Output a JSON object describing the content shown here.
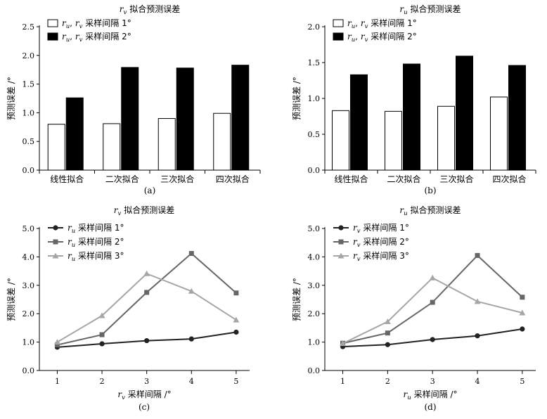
{
  "chart_data": [
    {
      "id": "a",
      "type": "bar",
      "title": "rv 拟合预测误差",
      "title_italic": "r",
      "title_sub": "v",
      "title_rest": " 拟合预测误差",
      "caption": "(a)",
      "ylabel": "预测误差 /°",
      "xlabel": "",
      "ylim": [
        0,
        2.5
      ],
      "yticks": [
        "0.0",
        "0.5",
        "1.0",
        "1.5",
        "2.0",
        "2.5"
      ],
      "categories": [
        "线性拟合",
        "二次拟合",
        "三次拟合",
        "四次拟合"
      ],
      "legend_position": "top-left",
      "series": [
        {
          "name": "ru, rv 采样间隔 1°",
          "legend_rest": " 采样间隔  1°",
          "fill": "#ffffff",
          "values": [
            0.8,
            0.81,
            0.9,
            0.99
          ]
        },
        {
          "name": "ru, rv 采样间隔 2°",
          "legend_rest": " 采样间隔  2°",
          "fill": "#000000",
          "values": [
            1.26,
            1.79,
            1.78,
            1.83
          ]
        }
      ]
    },
    {
      "id": "b",
      "type": "bar",
      "title": "ru 拟合预测误差",
      "title_italic": "r",
      "title_sub": "u",
      "title_rest": " 拟合预测误差",
      "caption": "(b)",
      "ylabel": "预测误差 /°",
      "xlabel": "",
      "ylim": [
        0,
        2.0
      ],
      "yticks": [
        "0.0",
        "0.5",
        "1.0",
        "1.5",
        "2.0"
      ],
      "categories": [
        "线性拟合",
        "二次拟合",
        "三次拟合",
        "四次拟合"
      ],
      "legend_position": "top-left",
      "series": [
        {
          "name": "ru, rv 采样间隔 1°",
          "legend_rest": " 采样间隔  1°",
          "fill": "#ffffff",
          "values": [
            0.83,
            0.82,
            0.89,
            1.02
          ]
        },
        {
          "name": "ru, rv 采样间隔 2°",
          "legend_rest": " 采样间隔  2°",
          "fill": "#000000",
          "values": [
            1.33,
            1.48,
            1.59,
            1.46
          ]
        }
      ]
    },
    {
      "id": "c",
      "type": "line",
      "title": "rv 拟合预测误差",
      "title_italic": "r",
      "title_sub": "v",
      "title_rest": " 拟合预测误差",
      "caption": "(c)",
      "ylabel": "预测误差 /°",
      "xlabel": "rv 采样间隔 /°",
      "xlabel_sub": "v",
      "xlabel_rest": " 采样间隔 /°",
      "ylim": [
        0,
        5.0
      ],
      "yticks": [
        "0.0",
        "1.0",
        "2.0",
        "3.0",
        "4.0",
        "5.0"
      ],
      "x": [
        1,
        2,
        3,
        4,
        5
      ],
      "xticks": [
        "1",
        "2",
        "3",
        "4",
        "5"
      ],
      "legend_position": "top-left",
      "series": [
        {
          "name": "ru 采样间隔 1°",
          "legend_sub": "u",
          "legend_rest": " 采样间隔  1°",
          "color": "#222222",
          "marker": "circle",
          "values": [
            0.82,
            0.94,
            1.05,
            1.11,
            1.35
          ]
        },
        {
          "name": "ru 采样间隔 2°",
          "legend_sub": "u",
          "legend_rest": " 采样间隔  2°",
          "color": "#666666",
          "marker": "square",
          "values": [
            0.9,
            1.26,
            2.75,
            4.12,
            2.73
          ]
        },
        {
          "name": "ru 采样间隔 3°",
          "legend_sub": "u",
          "legend_rest": " 采样间隔  3°",
          "color": "#a6a6a6",
          "marker": "triangle",
          "values": [
            1.0,
            1.93,
            3.41,
            2.79,
            1.78
          ]
        }
      ]
    },
    {
      "id": "d",
      "type": "line",
      "title": "ru 拟合预测误差",
      "title_italic": "r",
      "title_sub": "u",
      "title_rest": " 拟合预测误差",
      "caption": "(d)",
      "ylabel": "预测误差 /°",
      "xlabel": "ru 采样间隔 /°",
      "xlabel_sub": "u",
      "xlabel_rest": " 采样间隔 /°",
      "ylim": [
        0,
        5.0
      ],
      "yticks": [
        "0.0",
        "1.0",
        "2.0",
        "3.0",
        "4.0",
        "5.0"
      ],
      "x": [
        1,
        2,
        3,
        4,
        5
      ],
      "xticks": [
        "1",
        "2",
        "3",
        "4",
        "5"
      ],
      "legend_position": "top-left",
      "series": [
        {
          "name": "rv 采样间隔 1°",
          "legend_sub": "v",
          "legend_rest": " 采样间隔  1°",
          "color": "#222222",
          "marker": "circle",
          "values": [
            0.84,
            0.91,
            1.09,
            1.22,
            1.46
          ]
        },
        {
          "name": "rv 采样间隔 2°",
          "legend_sub": "v",
          "legend_rest": " 采样间隔  2°",
          "color": "#666666",
          "marker": "square",
          "values": [
            0.96,
            1.32,
            2.4,
            4.05,
            2.58
          ]
        },
        {
          "name": "rv 采样间隔 3°",
          "legend_sub": "v",
          "legend_rest": " 采样间隔  3°",
          "color": "#a6a6a6",
          "marker": "triangle",
          "values": [
            0.95,
            1.72,
            3.26,
            2.43,
            2.03
          ]
        }
      ]
    }
  ]
}
